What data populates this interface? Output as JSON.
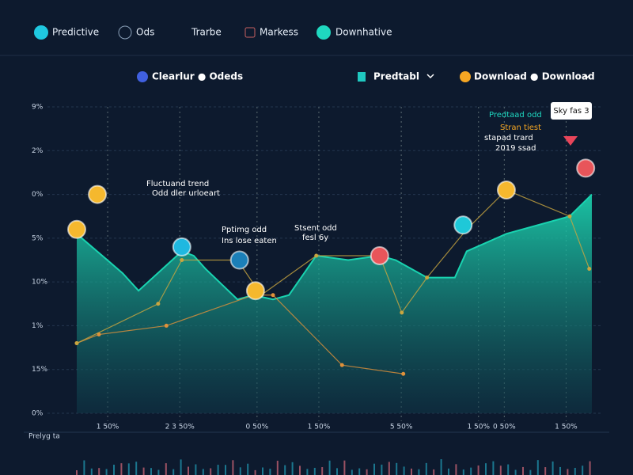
{
  "nav": [
    "Predictive",
    "Ods",
    "Trarbe",
    "Markess",
    "Downhative"
  ],
  "toolbar": {
    "legend": "Clearlur ● Odeds",
    "select": "Predtabl",
    "download": "Download ● Download"
  },
  "footer_label": "Prelyg ta",
  "chart_data": {
    "type": "area",
    "xlim": [
      0,
      100
    ],
    "ylim": [
      0,
      7
    ],
    "grid": true,
    "yticks": [
      {
        "value": 0,
        "label": "0%"
      },
      {
        "value": 1,
        "label": "15%"
      },
      {
        "value": 2,
        "label": "1%"
      },
      {
        "value": 3,
        "label": "10%"
      },
      {
        "value": 4,
        "label": "5%"
      },
      {
        "value": 5,
        "label": "0%"
      },
      {
        "value": 6,
        "label": "2%"
      },
      {
        "value": 7,
        "label": "9%"
      }
    ],
    "xticks": [
      {
        "value": 6,
        "label": "1 50%"
      },
      {
        "value": 20,
        "label": "2 3 50%"
      },
      {
        "value": 35,
        "label": "0 50%"
      },
      {
        "value": 47,
        "label": "1 50%"
      },
      {
        "value": 63,
        "label": "5 50%"
      },
      {
        "value": 78,
        "label": "1 50%"
      },
      {
        "value": 83,
        "label": "0 50%"
      },
      {
        "value": 95,
        "label": "1 50%"
      }
    ],
    "series": [
      {
        "color": "#19d3b0",
        "x": [
          0,
          8.9,
          12,
          20.4,
          22.7,
          25,
          31.2,
          34.3,
          38.1,
          41.2,
          46.5,
          52.7,
          58.8,
          61.9,
          68,
          73.4,
          75.7,
          83.4,
          95.7,
          100
        ],
        "values": [
          4.1,
          3.2,
          2.8,
          3.7,
          3.6,
          3.3,
          2.6,
          2.7,
          2.6,
          2.7,
          3.6,
          3.5,
          3.6,
          3.5,
          3.1,
          3.1,
          3.7,
          4.1,
          4.5,
          5.0
        ]
      },
      {
        "color": "#e0913a",
        "x": [
          0,
          4.3,
          17.4,
          34.3,
          38.1,
          51.5,
          63.4
        ],
        "values": [
          1.6,
          1.8,
          2.0,
          2.7,
          2.7,
          1.1,
          0.9
        ]
      },
      {
        "color": "#c9a640",
        "x": [
          0,
          15.8,
          20.4,
          31.2,
          35.8,
          46.5,
          58.8,
          63.1,
          68,
          75.7,
          83.4,
          95.7,
          99.5
        ],
        "values": [
          1.6,
          2.5,
          3.5,
          3.5,
          2.7,
          3.6,
          3.6,
          2.3,
          3.1,
          4.2,
          5.1,
          4.5,
          3.3
        ]
      }
    ],
    "markers": [
      {
        "x": 4.0,
        "y": 5.0,
        "color": "#f5b82e"
      },
      {
        "x": 0,
        "y": 4.2,
        "color": "#f5b82e"
      },
      {
        "x": 20.4,
        "y": 3.8,
        "color": "#1fb8e0"
      },
      {
        "x": 31.6,
        "y": 3.5,
        "color": "#1b7fb8"
      },
      {
        "x": 34.7,
        "y": 2.8,
        "color": "#f5b82e"
      },
      {
        "x": 58.8,
        "y": 3.6,
        "color": "#e8555a"
      },
      {
        "x": 75,
        "y": 4.3,
        "color": "#1fc8d8"
      },
      {
        "x": 83.4,
        "y": 5.1,
        "color": "#f5b82e"
      },
      {
        "x": 98.8,
        "y": 5.6,
        "color": "#e8555a"
      }
    ],
    "annotations": [
      "Fluctuand trend",
      "Odd dler urloeart",
      "Pptimg odd",
      "Ins lose eaten",
      "Stsent odd",
      "fesl 6y",
      "Predtaad odd",
      "Stran tiest",
      "stapad trard",
      "2019 ssad",
      "Sky fas 3"
    ]
  }
}
